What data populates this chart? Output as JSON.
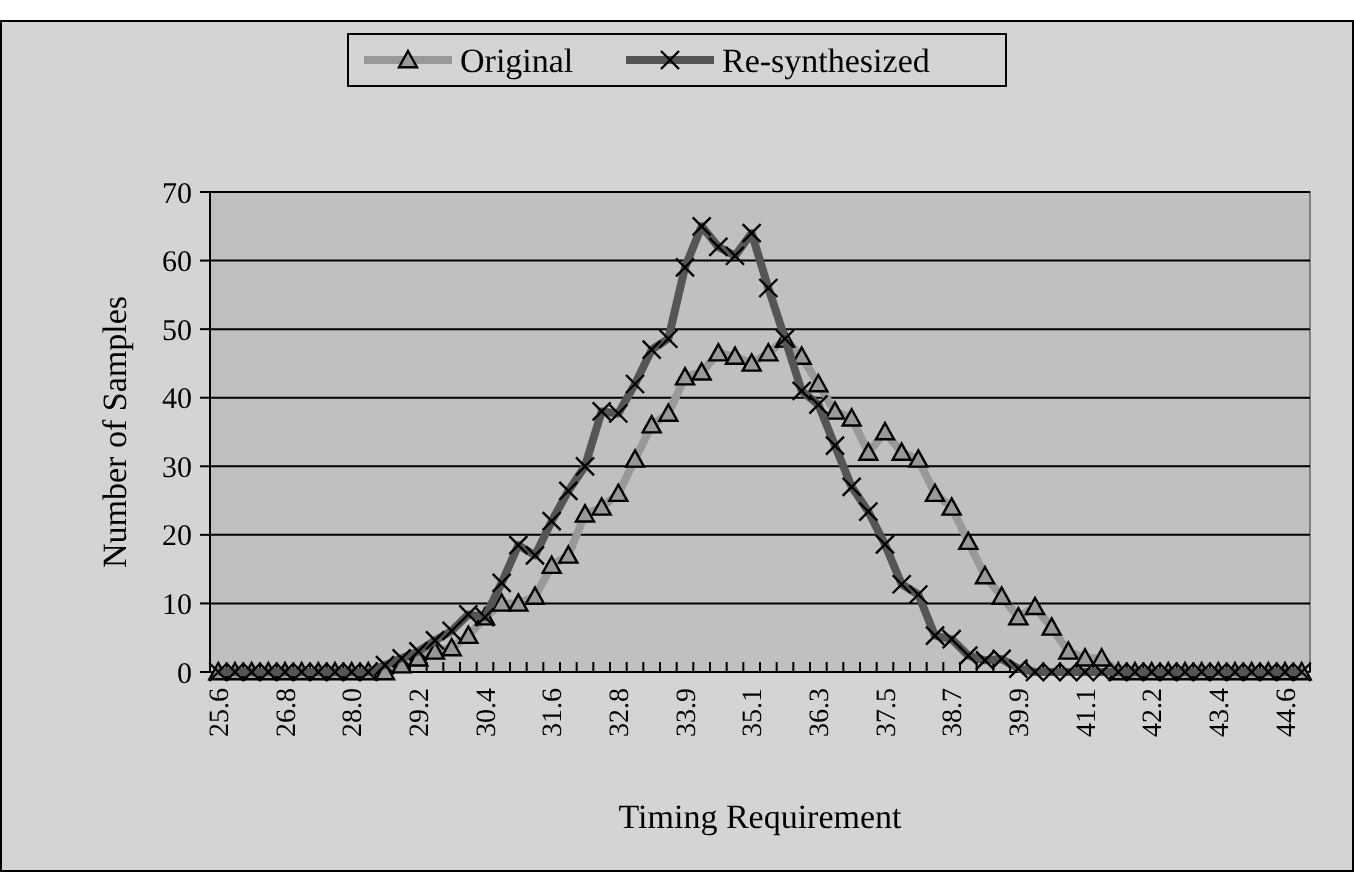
{
  "chart_data": {
    "type": "line",
    "xlabel": "Timing Requirement",
    "ylabel": "Number of Samples",
    "categories": [
      "25.6",
      null,
      null,
      null,
      "26.8",
      null,
      null,
      null,
      "28.0",
      null,
      null,
      null,
      "29.2",
      null,
      null,
      null,
      "30.4",
      null,
      null,
      null,
      "31.6",
      null,
      null,
      null,
      "32.8",
      null,
      null,
      null,
      "33.9",
      null,
      null,
      null,
      "35.1",
      null,
      null,
      null,
      "36.3",
      null,
      null,
      null,
      "37.5",
      null,
      null,
      null,
      "38.7",
      null,
      null,
      null,
      "39.9",
      null,
      null,
      null,
      "41.1",
      null,
      null,
      null,
      "42.2",
      null,
      null,
      null,
      "43.4",
      null,
      null,
      null,
      "44.6",
      null
    ],
    "series": [
      {
        "name": "Original",
        "color": "#999999",
        "marker": "triangle",
        "values": [
          0,
          0,
          0,
          0,
          0,
          0,
          0,
          0,
          0,
          0,
          0,
          1,
          2,
          3,
          3.5,
          5.3,
          8,
          10,
          10,
          11,
          15.5,
          17,
          23,
          24,
          26,
          31,
          36,
          37.7,
          43,
          43.7,
          46.5,
          46,
          45,
          46.5,
          48.5,
          46,
          42,
          38,
          37,
          32,
          35,
          32,
          31,
          26,
          24,
          19,
          14,
          11,
          8,
          9.5,
          6.5,
          3,
          2,
          2,
          0,
          0,
          0,
          0,
          0,
          0,
          0,
          0,
          0,
          0,
          0,
          0
        ]
      },
      {
        "name": "Re-synthesized",
        "color": "#555555",
        "marker": "cross",
        "values": [
          0,
          0,
          0,
          0,
          0,
          0,
          0,
          0,
          0,
          0,
          1,
          2,
          3,
          4.6,
          6,
          8.4,
          8,
          13,
          18.5,
          17,
          22,
          26.4,
          30,
          38,
          37.7,
          42,
          47,
          48.6,
          59,
          65,
          62,
          60.7,
          64,
          56,
          48.6,
          41,
          39,
          33,
          27,
          23.4,
          18.6,
          12.8,
          11.3,
          5.3,
          4.8,
          2.4,
          1.7,
          1.9,
          0.5,
          0,
          0,
          0,
          0,
          0,
          0,
          0,
          0,
          0,
          0,
          0,
          0,
          0,
          0,
          0,
          0,
          0
        ]
      }
    ],
    "ylim": [
      0,
      70
    ],
    "yticks": [
      0,
      10,
      20,
      30,
      40,
      50,
      60,
      70
    ],
    "grid": "y",
    "legend": "top",
    "line_style": "solid"
  }
}
